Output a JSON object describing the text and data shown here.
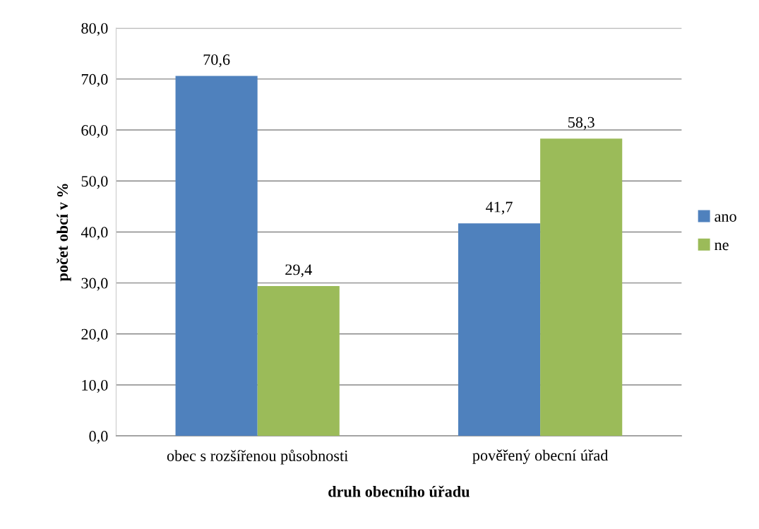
{
  "chart_data": {
    "type": "bar",
    "xlabel": "druh obecního úřadu",
    "ylabel": "počet obcí v %",
    "categories": [
      "obec s rozšířenou působnosti",
      "pověřený obecní úřad"
    ],
    "series": [
      {
        "name": "ano",
        "color": "#4f81bd",
        "values": [
          70.6,
          41.7
        ],
        "value_labels": [
          "70,6",
          "41,7"
        ]
      },
      {
        "name": "ne",
        "color": "#9bbb59",
        "values": [
          29.4,
          58.3
        ],
        "value_labels": [
          "29,4",
          "58,3"
        ]
      }
    ],
    "ylim": [
      0,
      80
    ],
    "yticks": [
      {
        "value": 0,
        "label": "0,0"
      },
      {
        "value": 10,
        "label": "10,0"
      },
      {
        "value": 20,
        "label": "20,0"
      },
      {
        "value": 30,
        "label": "30,0"
      },
      {
        "value": 40,
        "label": "40,0"
      },
      {
        "value": 50,
        "label": "50,0"
      },
      {
        "value": 60,
        "label": "60,0"
      },
      {
        "value": 70,
        "label": "70,0"
      },
      {
        "value": 80,
        "label": "80,0"
      }
    ],
    "grid": "y",
    "legend": "right"
  }
}
